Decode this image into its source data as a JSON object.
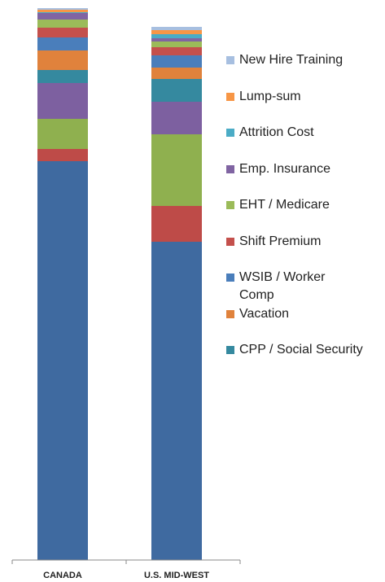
{
  "chart_data": {
    "type": "stacked-bar",
    "categories": [
      "CANADA",
      "U.S. MID-WEST"
    ],
    "ylim": [
      0,
      680
    ],
    "series": [
      {
        "color": "#3f6aa0",
        "values": [
          490,
          391
        ]
      },
      {
        "color": "#be4b48",
        "values": [
          15,
          44
        ]
      },
      {
        "color": "#8fb04f",
        "values": [
          37,
          88
        ]
      },
      {
        "color": "#7d60a0",
        "values": [
          44,
          40
        ]
      },
      {
        "name": "CPP / Social Security",
        "color": "#35899f",
        "values": [
          16,
          28
        ]
      },
      {
        "name": "Vacation",
        "color": "#e0823c",
        "values": [
          24,
          14
        ]
      },
      {
        "name": "WSIB / Worker Comp",
        "color": "#4a7ebb",
        "values": [
          16,
          15
        ]
      },
      {
        "name": "Shift Premium",
        "color": "#c4504c",
        "values": [
          12,
          10
        ]
      },
      {
        "name": "EHT / Medicare",
        "color": "#9bbb59",
        "values": [
          10,
          7
        ]
      },
      {
        "name": "Emp. Insurance",
        "color": "#8064a2",
        "values": [
          8,
          4
        ]
      },
      {
        "name": "Attrition Cost",
        "color": "#4bacc6",
        "values": [
          1,
          5
        ]
      },
      {
        "name": "Lump-sum",
        "color": "#f79646",
        "values": [
          3,
          5
        ]
      },
      {
        "name": "New Hire Training",
        "color": "#a7bfe0",
        "values": [
          2,
          4
        ]
      }
    ]
  }
}
